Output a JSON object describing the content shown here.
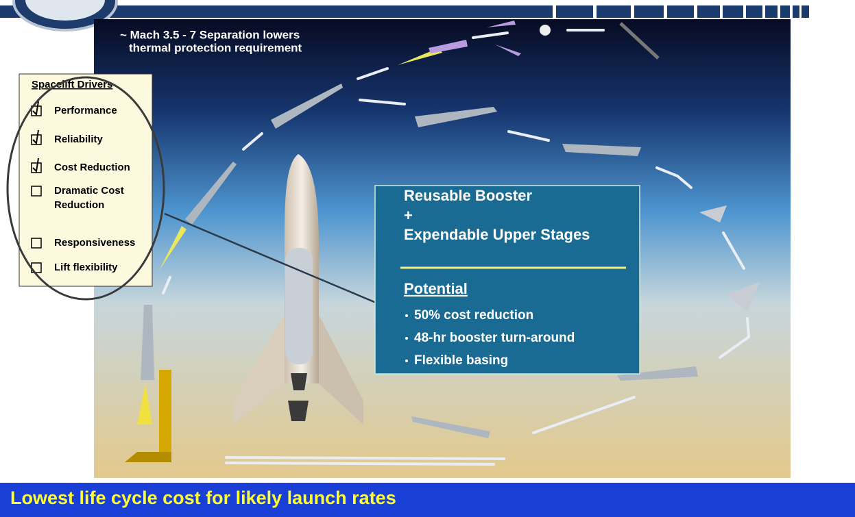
{
  "annotation": {
    "lines": [
      "~ Mach 3.5 - 7 Separation lowers",
      "thermal protection requirement"
    ]
  },
  "drivers": {
    "title": "Spacelift Drivers",
    "items": [
      {
        "lines": [
          "Performance"
        ],
        "checked": true
      },
      {
        "lines": [
          "Reliability"
        ],
        "checked": true
      },
      {
        "lines": [
          "Cost Reduction"
        ],
        "checked": true
      },
      {
        "lines": [
          "Dramatic Cost",
          "Reduction"
        ],
        "checked": false
      },
      {
        "lines": [
          "Responsiveness"
        ],
        "checked": false
      },
      {
        "lines": [
          "Lift flexibility"
        ],
        "checked": false
      }
    ]
  },
  "concept": {
    "lines": [
      "Reusable Booster",
      "+",
      "Expendable Upper Stages"
    ],
    "potential": {
      "title": "Potential",
      "bullets": [
        "50% cost reduction",
        "48-hr booster turn-around",
        "Flexible basing"
      ]
    }
  },
  "footer": {
    "text": "Lowest life cycle cost for likely launch rates"
  }
}
